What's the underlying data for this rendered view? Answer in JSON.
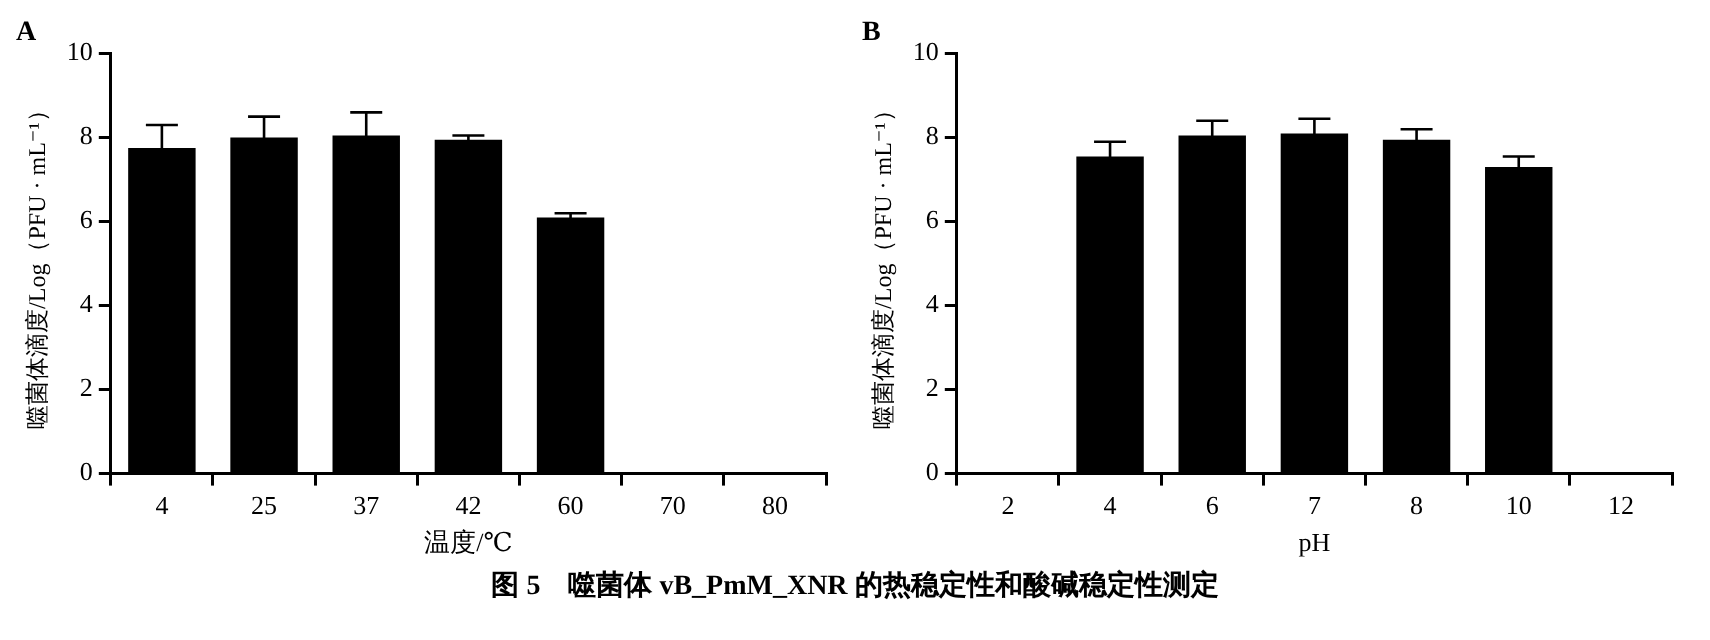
{
  "chart_data": [
    {
      "type": "bar",
      "title": "A",
      "xlabel": "温度/℃",
      "ylabel": "噬菌体滴度/Log（PFU · mL⁻¹）",
      "categories": [
        "4",
        "25",
        "37",
        "42",
        "60",
        "70",
        "80"
      ],
      "values": [
        7.75,
        8.0,
        8.05,
        7.95,
        6.1,
        0,
        0
      ],
      "errors": [
        0.55,
        0.5,
        0.55,
        0.1,
        0.1,
        null,
        null
      ],
      "color": "#000000",
      "ylim": [
        0,
        10
      ],
      "yticks": [
        0,
        2,
        4,
        6,
        8,
        10
      ],
      "annotations": [
        "图 5　噬菌体 vB_PmM_XNR 的热稳定性和酸碱稳定性测定"
      ]
    },
    {
      "type": "bar",
      "title": "B",
      "xlabel": "pH",
      "ylabel": "噬菌体滴度/Log（PFU · mL⁻¹）",
      "categories": [
        "2",
        "4",
        "6",
        "7",
        "8",
        "10",
        "12"
      ],
      "values": [
        0,
        7.55,
        8.05,
        8.1,
        7.95,
        7.3,
        0
      ],
      "errors": [
        null,
        0.35,
        0.35,
        0.35,
        0.25,
        0.25,
        null
      ],
      "color": "#000000",
      "ylim": [
        0,
        10
      ],
      "yticks": [
        0,
        2,
        4,
        6,
        8,
        10
      ]
    }
  ]
}
